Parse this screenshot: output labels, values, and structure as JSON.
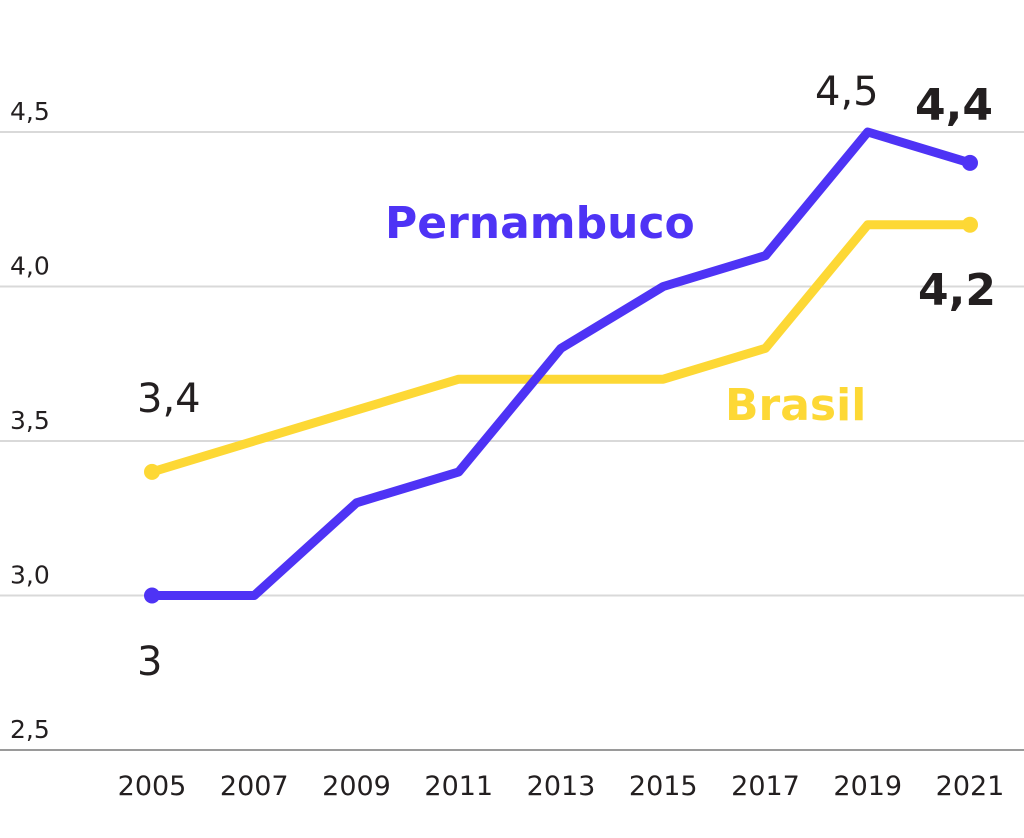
{
  "chart_data": {
    "type": "line",
    "x": [
      "2005",
      "2007",
      "2009",
      "2011",
      "2013",
      "2015",
      "2017",
      "2019",
      "2021"
    ],
    "ylim": [
      2.5,
      4.5
    ],
    "yticks": [
      "2,5",
      "3,0",
      "3,5",
      "4,0",
      "4,5"
    ],
    "grid": true,
    "series": [
      {
        "name": "Pernambuco",
        "color": "#4e33f5",
        "values": [
          3.0,
          3.0,
          3.3,
          3.4,
          3.8,
          4.0,
          4.1,
          4.5,
          4.4
        ]
      },
      {
        "name": "Brasil",
        "color": "#fdd835",
        "values": [
          3.4,
          3.5,
          3.6,
          3.7,
          3.7,
          3.7,
          3.8,
          4.2,
          4.2
        ]
      }
    ],
    "annotations": {
      "pe_start": "3",
      "br_start": "3,4",
      "pe_peak": "4,5",
      "pe_end": "4,4",
      "br_end": "4,2"
    }
  }
}
